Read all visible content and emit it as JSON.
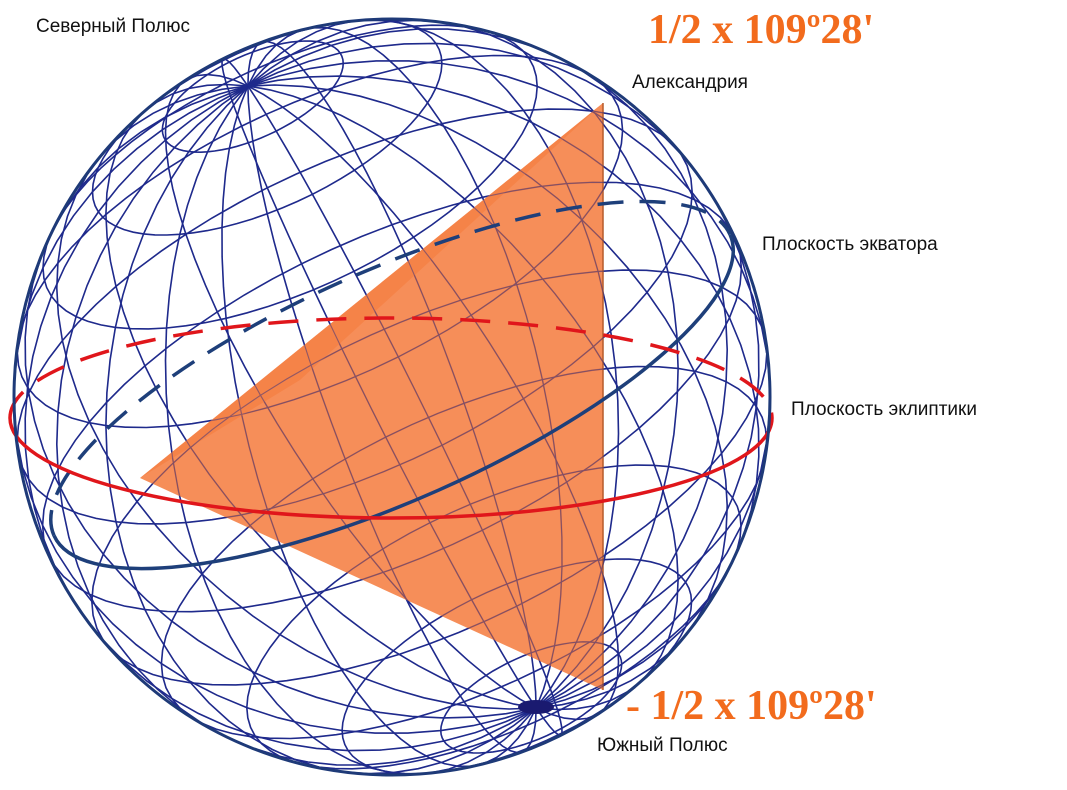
{
  "labels": {
    "north_pole": "Северный Полюс",
    "alexandria": "Александрия",
    "equator_plane": "Плоскость экватора",
    "ecliptic_plane": "Плоскость эклиптики",
    "south_pole": "Южный Полюс"
  },
  "angles": {
    "top": "1/2 x 109º28'",
    "bottom": "- 1/2 x 109º28'"
  },
  "colors": {
    "grid": "#1f2a8c",
    "outline": "#1e3a78",
    "equator": "#1e3f7a",
    "ecliptic": "#e0161b",
    "triangle_light": "#f8a87a",
    "triangle_main": "#f47a3c",
    "angle_text": "#f26b1d"
  }
}
